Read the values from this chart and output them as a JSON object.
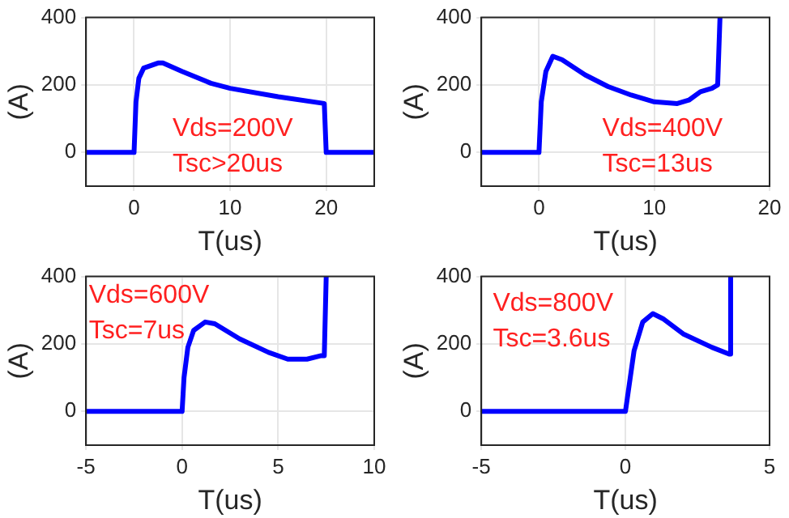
{
  "chart_data": [
    {
      "type": "line",
      "xlabel": "T(us)",
      "ylabel": "(A)",
      "xlim": [
        -5,
        25
      ],
      "xticks": [
        0,
        10,
        20
      ],
      "ylim": [
        -100,
        400
      ],
      "yticks": [
        0,
        200,
        400
      ],
      "grid": true,
      "legend": false,
      "marker": "none",
      "line_style": "solid",
      "annotations": [
        "Vds=200V",
        "Tsc>20us"
      ],
      "series": [
        {
          "color": "#0000ff",
          "x": [
            -5,
            0,
            0.2,
            0.5,
            1,
            2.5,
            3,
            5,
            8,
            10,
            15,
            19.8,
            20,
            25
          ],
          "values": [
            0,
            0,
            150,
            220,
            250,
            265,
            265,
            240,
            205,
            190,
            165,
            145,
            0,
            0
          ]
        }
      ]
    },
    {
      "type": "line",
      "xlabel": "T(us)",
      "ylabel": "(A)",
      "xlim": [
        -5,
        20
      ],
      "xticks": [
        0,
        10,
        20
      ],
      "ylim": [
        -100,
        400
      ],
      "yticks": [
        0,
        200,
        400
      ],
      "grid": true,
      "legend": false,
      "marker": "none",
      "line_style": "solid",
      "annotations": [
        "Vds=400V",
        "Tsc=13us"
      ],
      "series": [
        {
          "color": "#0000ff",
          "x": [
            -5,
            0,
            0.2,
            0.6,
            1.2,
            2,
            4,
            6,
            8,
            10,
            12,
            13,
            14,
            15,
            15.5,
            15.7
          ],
          "values": [
            0,
            0,
            150,
            240,
            285,
            275,
            230,
            195,
            170,
            150,
            145,
            155,
            180,
            190,
            200,
            400
          ]
        }
      ]
    },
    {
      "type": "line",
      "xlabel": "T(us)",
      "ylabel": "(A)",
      "xlim": [
        -5,
        10
      ],
      "xticks": [
        -5,
        0,
        5,
        10
      ],
      "ylim": [
        -100,
        400
      ],
      "yticks": [
        0,
        200,
        400
      ],
      "grid": true,
      "legend": false,
      "marker": "none",
      "line_style": "solid",
      "annotations": [
        "Vds=600V",
        "Tsc=7us"
      ],
      "series": [
        {
          "color": "#0000ff",
          "x": [
            -5,
            0,
            0.1,
            0.3,
            0.6,
            1.2,
            1.7,
            3,
            4.5,
            5.5,
            6.5,
            7.2,
            7.4,
            7.5
          ],
          "values": [
            0,
            0,
            100,
            190,
            240,
            265,
            260,
            215,
            175,
            155,
            155,
            165,
            165,
            400
          ]
        }
      ]
    },
    {
      "type": "line",
      "xlabel": "T(us)",
      "ylabel": "(A)",
      "xlim": [
        -5,
        5
      ],
      "xticks": [
        -5,
        0,
        5
      ],
      "ylim": [
        -100,
        400
      ],
      "yticks": [
        0,
        200,
        400
      ],
      "grid": true,
      "legend": false,
      "marker": "none",
      "line_style": "solid",
      "annotations": [
        "Vds=800V",
        "Tsc=3.6us"
      ],
      "series": [
        {
          "color": "#0000ff",
          "x": [
            -5,
            0,
            0.1,
            0.3,
            0.6,
            0.95,
            1.3,
            2,
            3,
            3.6,
            3.65
          ],
          "values": [
            0,
            0,
            60,
            180,
            265,
            290,
            275,
            230,
            190,
            170,
            400
          ]
        }
      ]
    }
  ]
}
